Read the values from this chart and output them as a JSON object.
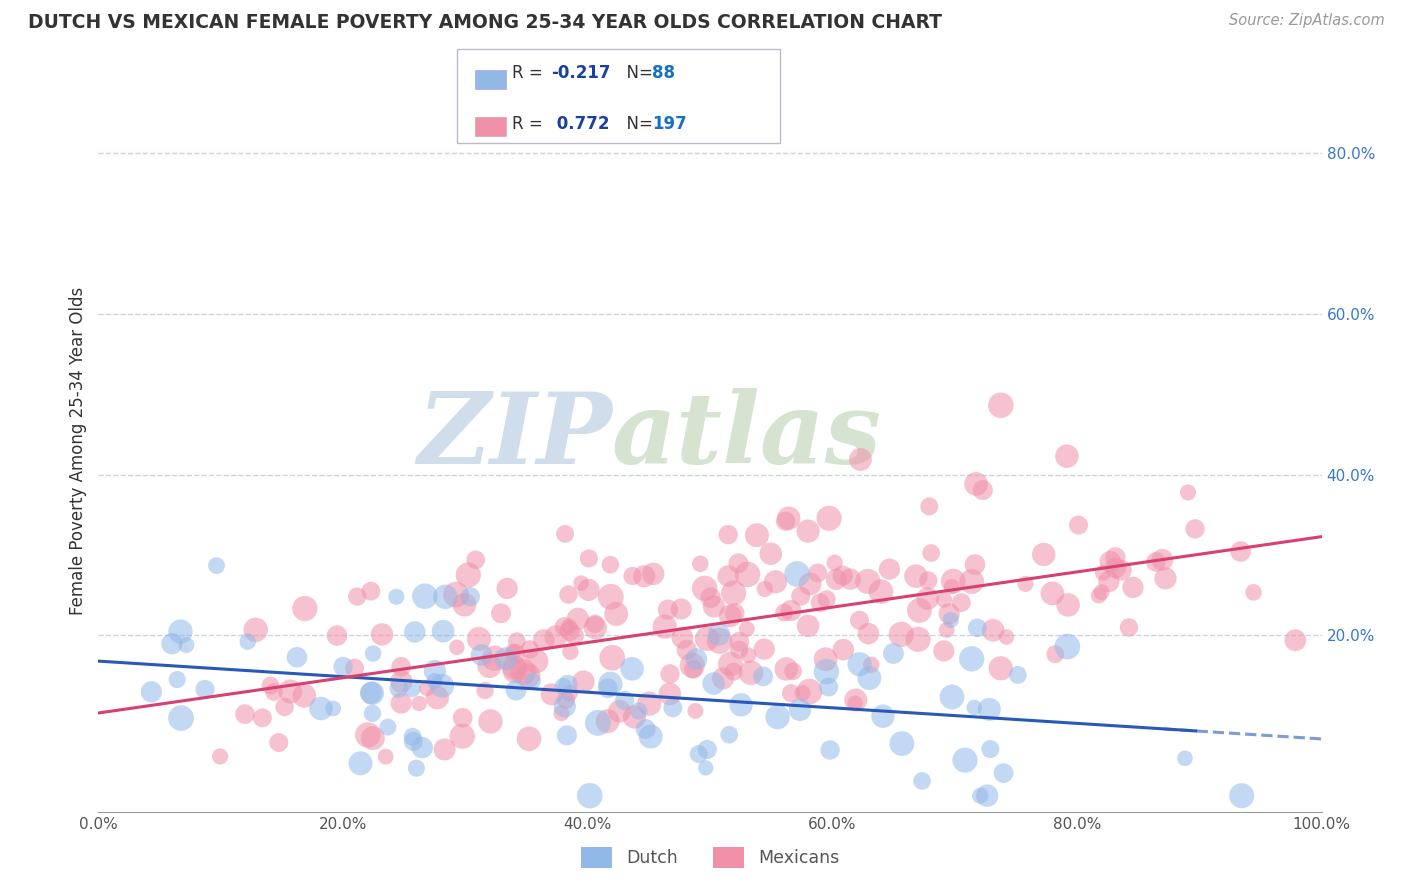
{
  "title": "DUTCH VS MEXICAN FEMALE POVERTY AMONG 25-34 YEAR OLDS CORRELATION CHART",
  "source": "Source: ZipAtlas.com",
  "ylabel": "Female Poverty Among 25-34 Year Olds",
  "xlim": [
    0,
    1
  ],
  "ylim": [
    -0.02,
    0.88
  ],
  "dutch_R": -0.217,
  "dutch_N": 88,
  "mexican_R": 0.772,
  "mexican_N": 197,
  "dutch_color": "#92b8e8",
  "mexican_color": "#f090a8",
  "dutch_line_color": "#2858b8",
  "mexican_line_color": "#d84070",
  "watermark_zip": "ZIP",
  "watermark_atlas": "atlas",
  "watermark_color_zip": "#b8cce0",
  "watermark_color_atlas": "#c8d8c8",
  "legend_r_color": "#1840a0",
  "legend_n_color": "#1870c0",
  "background_color": "#ffffff",
  "grid_color": "#c8d4e8",
  "ytick_color": "#3878c8"
}
